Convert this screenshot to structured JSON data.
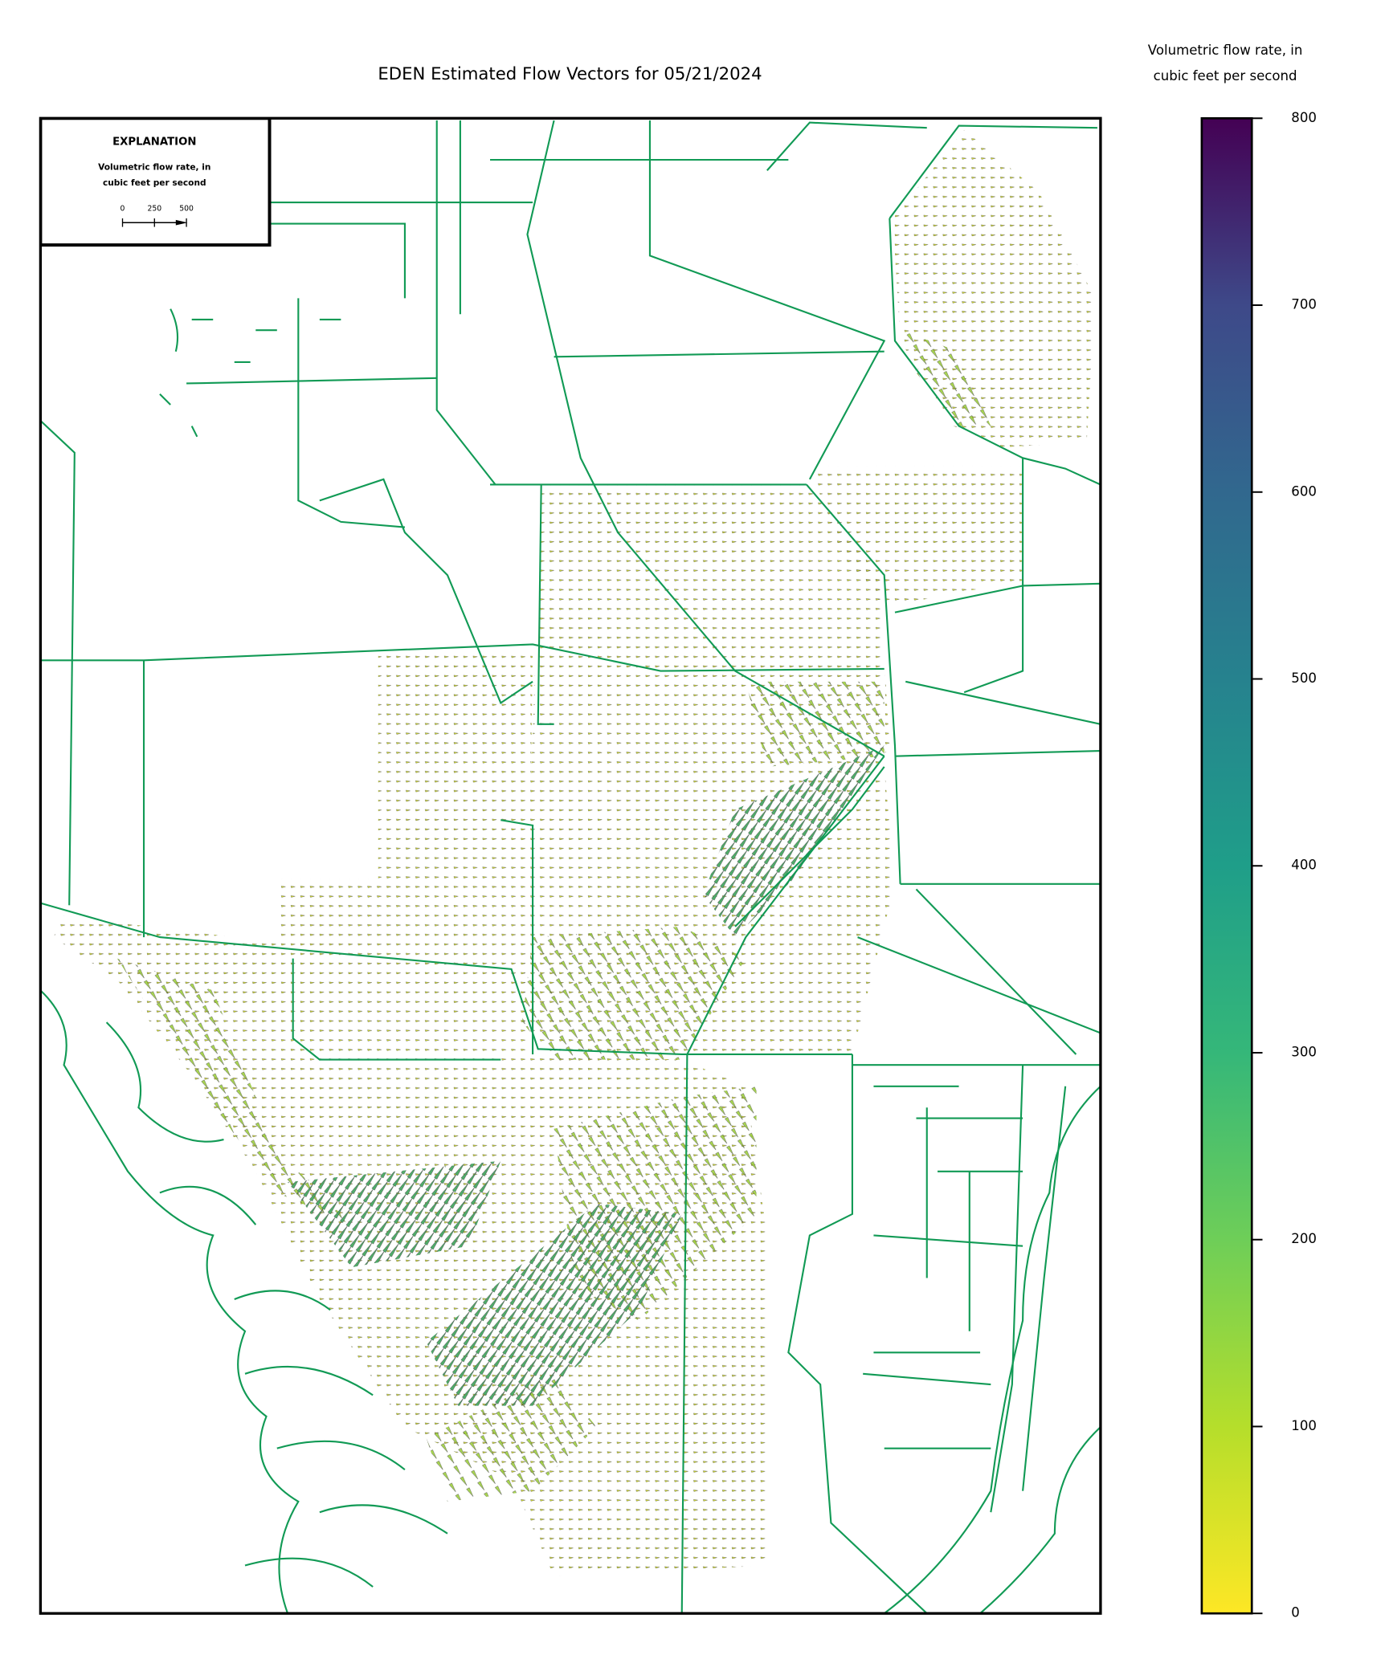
{
  "title": "EDEN Estimated Flow Vectors for 05/21/2024",
  "explanation": {
    "title": "EXPLANATION",
    "label": [
      "Volumetric flow rate, in",
      "cubic feet per second"
    ],
    "scale_ticks": [
      0,
      250,
      500
    ]
  },
  "colorbar": {
    "label": [
      "Volumetric flow rate, in",
      "cubic feet per second"
    ],
    "lim": [
      0,
      800
    ],
    "ticks": [
      0,
      100,
      200,
      300,
      400,
      500,
      600,
      700,
      800
    ],
    "colormap": "viridis"
  }
}
